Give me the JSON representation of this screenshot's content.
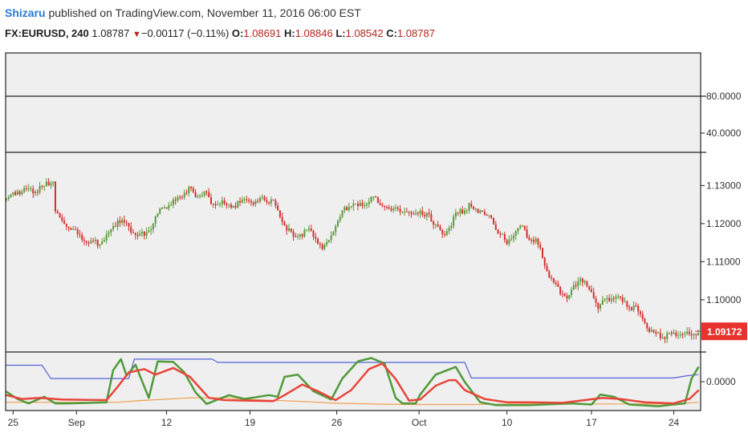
{
  "header": {
    "publisher": "Shizaru",
    "published_text": "published on TradingView.com, November 11, 2016 06:00 EST",
    "symbol": "FX:EURUSD, 240",
    "last": "1.08787",
    "change_arrow": "▼",
    "change": "−0.00117 (−0.11%)",
    "open_label": "O:",
    "open": "1.08691",
    "high_label": "H:",
    "high": "1.08846",
    "low_label": "L:",
    "low": "1.08542",
    "close_label": "C:",
    "close": "1.08787"
  },
  "colors": {
    "up": "#5a9a3a",
    "down": "#d63030",
    "background": "#efefef",
    "price_tag": "#e8322e",
    "blue_line": "#5560d8",
    "orange_line": "#f0a050",
    "green_line": "#4f9a3a",
    "red_line": "#e8453a"
  },
  "chart_data": [
    {
      "type": "line",
      "panel": "upper indicator",
      "y_ticks": [
        "80.0000",
        "40.0000"
      ],
      "series": []
    },
    {
      "type": "candlestick",
      "panel": "price",
      "y_ticks": [
        "1.13000",
        "1.12000",
        "1.11000",
        "1.10000"
      ],
      "ylim": [
        1.0865,
        1.1385
      ],
      "last_price_label": "1.09172",
      "x_tick_labels": [
        "25",
        "Sep",
        "12",
        "19",
        "26",
        "Oct",
        "10",
        "17",
        "24"
      ],
      "x_tick_index": [
        6,
        63,
        144,
        219,
        297,
        371,
        450,
        526,
        600
      ],
      "closes": [
        [
          0,
          1.1265
        ],
        [
          10,
          1.1285
        ],
        [
          20,
          1.1285
        ],
        [
          30,
          1.129
        ],
        [
          38,
          1.1305
        ],
        [
          42,
          1.1315
        ],
        [
          44,
          1.1235
        ],
        [
          50,
          1.1205
        ],
        [
          58,
          1.119
        ],
        [
          66,
          1.1165
        ],
        [
          74,
          1.1155
        ],
        [
          82,
          1.115
        ],
        [
          90,
          1.1165
        ],
        [
          96,
          1.1185
        ],
        [
          100,
          1.1215
        ],
        [
          108,
          1.1195
        ],
        [
          116,
          1.1175
        ],
        [
          124,
          1.1168
        ],
        [
          130,
          1.119
        ],
        [
          136,
          1.1225
        ],
        [
          142,
          1.1245
        ],
        [
          150,
          1.1255
        ],
        [
          158,
          1.1275
        ],
        [
          164,
          1.1295
        ],
        [
          170,
          1.127
        ],
        [
          178,
          1.1285
        ],
        [
          184,
          1.1252
        ],
        [
          192,
          1.1255
        ],
        [
          200,
          1.1245
        ],
        [
          208,
          1.125
        ],
        [
          216,
          1.1262
        ],
        [
          224,
          1.1255
        ],
        [
          232,
          1.1265
        ],
        [
          240,
          1.1255
        ],
        [
          246,
          1.122
        ],
        [
          252,
          1.1185
        ],
        [
          258,
          1.1165
        ],
        [
          266,
          1.1175
        ],
        [
          272,
          1.1182
        ],
        [
          278,
          1.1165
        ],
        [
          284,
          1.113
        ],
        [
          292,
          1.117
        ],
        [
          298,
          1.1205
        ],
        [
          304,
          1.1238
        ],
        [
          310,
          1.125
        ],
        [
          316,
          1.1245
        ],
        [
          322,
          1.125
        ],
        [
          328,
          1.1265
        ],
        [
          334,
          1.126
        ],
        [
          340,
          1.1245
        ],
        [
          346,
          1.123
        ],
        [
          350,
          1.1245
        ],
        [
          356,
          1.1232
        ],
        [
          362,
          1.1225
        ],
        [
          366,
          1.123
        ],
        [
          372,
          1.1225
        ],
        [
          376,
          1.1215
        ],
        [
          380,
          1.1225
        ],
        [
          386,
          1.1195
        ],
        [
          392,
          1.117
        ],
        [
          398,
          1.119
        ],
        [
          404,
          1.1225
        ],
        [
          410,
          1.1232
        ],
        [
          416,
          1.1245
        ],
        [
          420,
          1.1235
        ],
        [
          426,
          1.1238
        ],
        [
          430,
          1.1225
        ],
        [
          436,
          1.121
        ],
        [
          442,
          1.1182
        ],
        [
          446,
          1.1165
        ],
        [
          450,
          1.114
        ],
        [
          456,
          1.1175
        ],
        [
          460,
          1.1195
        ],
        [
          464,
          1.1185
        ],
        [
          470,
          1.116
        ],
        [
          476,
          1.1155
        ],
        [
          480,
          1.113
        ],
        [
          484,
          1.109
        ],
        [
          490,
          1.105
        ],
        [
          496,
          1.1025
        ],
        [
          502,
          1.1015
        ],
        [
          506,
          1.1005
        ],
        [
          510,
          1.103
        ],
        [
          516,
          1.106
        ],
        [
          520,
          1.1045
        ],
        [
          524,
          1.102
        ],
        [
          528,
          1.1012
        ],
        [
          532,
          1.0985
        ],
        [
          536,
          1.0995
        ],
        [
          542,
          1.1005
        ],
        [
          548,
          1.101
        ],
        [
          552,
          1.0998
        ],
        [
          556,
          1.099
        ],
        [
          560,
          1.098
        ],
        [
          566,
          1.0975
        ],
        [
          572,
          1.0955
        ],
        [
          576,
          1.093
        ],
        [
          582,
          1.0912
        ],
        [
          588,
          1.0902
        ],
        [
          594,
          1.0905
        ],
        [
          600,
          1.0908
        ],
        [
          606,
          1.0915
        ],
        [
          610,
          1.091
        ],
        [
          614,
          1.0908
        ],
        [
          618,
          1.0915
        ],
        [
          622,
          1.0917
        ]
      ]
    },
    {
      "type": "line",
      "panel": "oscillator",
      "y_ticks": [
        "0.0000"
      ],
      "ylim": [
        0,
        100
      ],
      "series": [
        {
          "color": "#5560d8",
          "points": [
            [
              0,
              79
            ],
            [
              32,
              79
            ],
            [
              40,
              55
            ],
            [
              110,
              55
            ],
            [
              115,
              90
            ],
            [
              185,
              90
            ],
            [
              190,
              84
            ],
            [
              412,
              84
            ],
            [
              418,
              56
            ],
            [
              600,
              56
            ],
            [
              612,
              60
            ],
            [
              622,
              62
            ]
          ]
        },
        {
          "color": "#f0a050",
          "points": [
            [
              0,
              12
            ],
            [
              100,
              12
            ],
            [
              120,
              15
            ],
            [
              165,
              20
            ],
            [
              200,
              20
            ],
            [
              220,
              17
            ],
            [
              260,
              14
            ],
            [
              300,
              10
            ],
            [
              360,
              8
            ],
            [
              420,
              8
            ],
            [
              470,
              9
            ],
            [
              520,
              9
            ],
            [
              570,
              9
            ],
            [
              600,
              9
            ],
            [
              622,
              12
            ]
          ]
        },
        {
          "color": "#4f9a3a",
          "points": [
            [
              0,
              31
            ],
            [
              10,
              18
            ],
            [
              20,
              10
            ],
            [
              34,
              22
            ],
            [
              44,
              10
            ],
            [
              56,
              10
            ],
            [
              90,
              12
            ],
            [
              96,
              70
            ],
            [
              103,
              90
            ],
            [
              108,
              60
            ],
            [
              116,
              80
            ],
            [
              128,
              20
            ],
            [
              136,
              86
            ],
            [
              150,
              85
            ],
            [
              160,
              66
            ],
            [
              170,
              30
            ],
            [
              180,
              9
            ],
            [
              190,
              17
            ],
            [
              200,
              25
            ],
            [
              214,
              18
            ],
            [
              236,
              25
            ],
            [
              244,
              22
            ],
            [
              250,
              58
            ],
            [
              262,
              62
            ],
            [
              276,
              32
            ],
            [
              292,
              17
            ],
            [
              302,
              55
            ],
            [
              316,
              86
            ],
            [
              328,
              92
            ],
            [
              340,
              82
            ],
            [
              350,
              20
            ],
            [
              356,
              10
            ],
            [
              368,
              10
            ],
            [
              372,
              26
            ],
            [
              386,
              62
            ],
            [
              404,
              76
            ],
            [
              412,
              49
            ],
            [
              426,
              12
            ],
            [
              440,
              7
            ],
            [
              470,
              7
            ],
            [
              508,
              10
            ],
            [
              526,
              8
            ],
            [
              534,
              26
            ],
            [
              546,
              22
            ],
            [
              560,
              8
            ],
            [
              586,
              5
            ],
            [
              600,
              8
            ],
            [
              610,
              10
            ],
            [
              616,
              55
            ],
            [
              622,
              75
            ]
          ]
        },
        {
          "color": "#e8453a",
          "points": [
            [
              0,
              25
            ],
            [
              14,
              18
            ],
            [
              30,
              20
            ],
            [
              50,
              17
            ],
            [
              90,
              16
            ],
            [
              100,
              40
            ],
            [
              110,
              66
            ],
            [
              124,
              72
            ],
            [
              134,
              62
            ],
            [
              150,
              74
            ],
            [
              165,
              58
            ],
            [
              182,
              20
            ],
            [
              196,
              16
            ],
            [
              216,
              15
            ],
            [
              240,
              14
            ],
            [
              250,
              25
            ],
            [
              266,
              44
            ],
            [
              280,
              32
            ],
            [
              296,
              16
            ],
            [
              310,
              34
            ],
            [
              326,
              72
            ],
            [
              338,
              82
            ],
            [
              350,
              54
            ],
            [
              362,
              15
            ],
            [
              372,
              17
            ],
            [
              386,
              42
            ],
            [
              398,
              52
            ],
            [
              404,
              52
            ],
            [
              412,
              34
            ],
            [
              430,
              18
            ],
            [
              450,
              12
            ],
            [
              470,
              12
            ],
            [
              500,
              11
            ],
            [
              528,
              18
            ],
            [
              536,
              20
            ],
            [
              552,
              18
            ],
            [
              574,
              12
            ],
            [
              600,
              10
            ],
            [
              614,
              18
            ],
            [
              622,
              33
            ]
          ]
        }
      ]
    }
  ]
}
